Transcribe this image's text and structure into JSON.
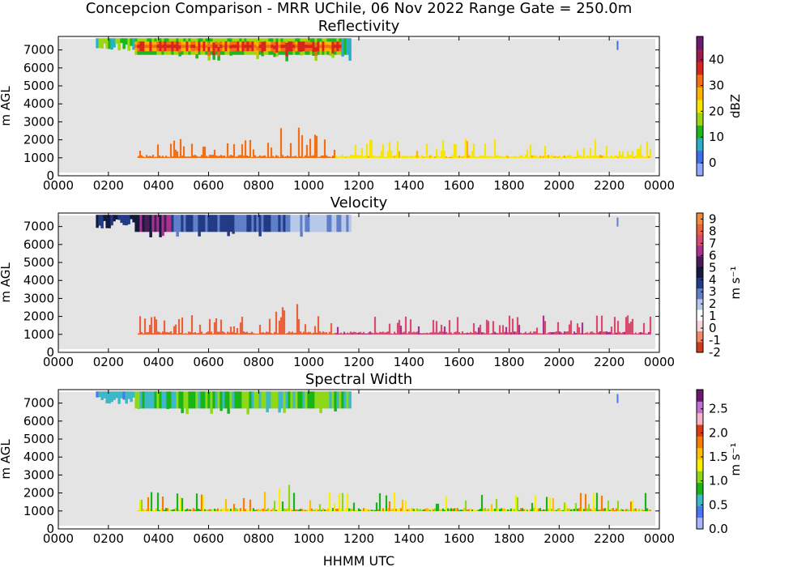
{
  "figure": {
    "suptitle": "Concepcion Comparison - MRR UChile, 06 Nov 2022 Range Gate = 250.0m",
    "xlabel": "HHMM UTC"
  },
  "chart_data": [
    {
      "type": "heatmap",
      "title": "Reflectivity",
      "xlabel": "",
      "ylabel": "m AGL",
      "x_ticks": [
        "0000",
        "0200",
        "0400",
        "0600",
        "0800",
        "1000",
        "1200",
        "1400",
        "1600",
        "1800",
        "2000",
        "2200",
        "0000"
      ],
      "y_ticks": [
        "0",
        "1000",
        "2000",
        "3000",
        "4000",
        "5000",
        "6000",
        "7000"
      ],
      "ylim": [
        0,
        7750
      ],
      "colorbar": {
        "label": "dBZ",
        "ticks": [
          "0",
          "10",
          "20",
          "30",
          "40"
        ],
        "range": [
          -5,
          49
        ]
      },
      "features": [
        {
          "region": "upper layer",
          "time_start": "0130",
          "time_end": "1140",
          "height_range": [
            6750,
            7650
          ],
          "core_dbz": 30
        },
        {
          "region": "low band",
          "time_start": "0310",
          "time_end": "2340",
          "height_range": [
            900,
            1350
          ],
          "dbz": 25
        }
      ]
    },
    {
      "type": "heatmap",
      "title": "Velocity",
      "xlabel": "",
      "ylabel": "m AGL",
      "x_ticks": [
        "0000",
        "0200",
        "0400",
        "0600",
        "0800",
        "1000",
        "1200",
        "1400",
        "1600",
        "1800",
        "2000",
        "2200",
        "0000"
      ],
      "y_ticks": [
        "0",
        "1000",
        "2000",
        "3000",
        "4000",
        "5000",
        "6000",
        "7000"
      ],
      "ylim": [
        0,
        7750
      ],
      "colorbar": {
        "label": "m s⁻¹",
        "ticks": [
          "-2",
          "-1",
          "0",
          "1",
          "2",
          "3",
          "4",
          "5",
          "6",
          "7",
          "8",
          "9"
        ],
        "range": [
          -2,
          9.5
        ]
      },
      "features": [
        {
          "region": "upper layer",
          "time_start": "0130",
          "time_end": "1140",
          "height_range": [
            6700,
            7650
          ],
          "velocity": 3
        },
        {
          "region": "low band",
          "time_start": "0310",
          "time_end": "2340",
          "height_range": [
            900,
            1350
          ],
          "velocity": 8
        }
      ]
    },
    {
      "type": "heatmap",
      "title": "Spectral Width",
      "xlabel": "HHMM UTC",
      "ylabel": "m AGL",
      "x_ticks": [
        "0000",
        "0200",
        "0400",
        "0600",
        "0800",
        "1000",
        "1200",
        "1400",
        "1600",
        "1800",
        "2000",
        "2200",
        "0000"
      ],
      "y_ticks": [
        "0",
        "1000",
        "2000",
        "3000",
        "4000",
        "5000",
        "6000",
        "7000"
      ],
      "ylim": [
        0,
        7750
      ],
      "colorbar": {
        "label": "m s⁻¹",
        "ticks": [
          "0.0",
          "0.5",
          "1.0",
          "1.5",
          "2.0",
          "2.5"
        ],
        "range": [
          0,
          2.9
        ]
      },
      "features": [
        {
          "region": "upper layer",
          "time_start": "0130",
          "time_end": "1140",
          "height_range": [
            6700,
            7650
          ],
          "width": 0.8
        },
        {
          "region": "low band",
          "time_start": "0310",
          "time_end": "2340",
          "height_range": [
            900,
            1350
          ],
          "width": 1.5
        }
      ]
    }
  ],
  "colors": {
    "axes_bg": "#e4e4e4",
    "refl_cmap": [
      "#8ea8ff",
      "#3f6fe8",
      "#29b0c6",
      "#1fb51f",
      "#9bd80f",
      "#f6e600",
      "#ffb300",
      "#f36f12",
      "#d7261c",
      "#9b1a4a",
      "#6a1b6b"
    ],
    "vel_cmap": [
      "#d33a1a",
      "#f08a6a",
      "#f6d6d6",
      "#ffffff",
      "#b8c8e8",
      "#5f7fc8",
      "#233a86",
      "#141a3c",
      "#4a1a5a",
      "#a8328c",
      "#d94b6e",
      "#e8623c",
      "#f08a3c"
    ],
    "width_cmap": [
      "#a9b6ff",
      "#4a78f0",
      "#3cb8c8",
      "#18b418",
      "#8fd818",
      "#f8f000",
      "#ffc000",
      "#f57d00",
      "#e03a10",
      "#f7b4c8",
      "#c070d0",
      "#6a1a6a"
    ]
  }
}
